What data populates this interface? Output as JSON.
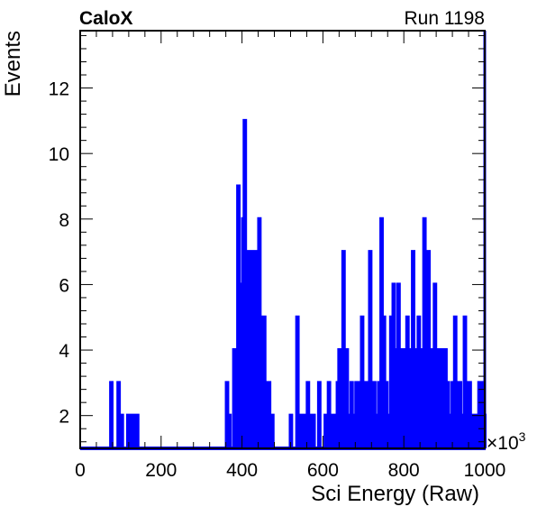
{
  "header": {
    "left_label": "CaloX",
    "right_label": "Run 1198"
  },
  "chart_data": {
    "type": "histogram",
    "title": "",
    "xlabel": "Sci Energy (Raw)",
    "ylabel": "Events",
    "x_multiplier_label": "×10",
    "x_multiplier_exp": "3",
    "xlim": [
      0,
      1000
    ],
    "ylim": [
      1,
      13.75
    ],
    "x_ticks": [
      "0",
      "200",
      "400",
      "600",
      "800",
      "1000"
    ],
    "y_ticks": [
      "2",
      "4",
      "6",
      "8",
      "10",
      "12"
    ],
    "line_color": "#0000ff",
    "bin_width": 2,
    "nonzero_bins": [
      [
        76,
        3
      ],
      [
        94,
        3
      ],
      [
        102,
        2
      ],
      [
        118,
        2
      ],
      [
        124,
        2
      ],
      [
        132,
        2
      ],
      [
        140,
        2
      ],
      [
        362,
        3
      ],
      [
        368,
        2
      ],
      [
        380,
        4
      ],
      [
        384,
        3
      ],
      [
        390,
        9
      ],
      [
        394,
        6
      ],
      [
        398,
        4
      ],
      [
        402,
        8
      ],
      [
        406,
        11
      ],
      [
        410,
        7
      ],
      [
        414,
        5
      ],
      [
        418,
        7
      ],
      [
        422,
        5
      ],
      [
        426,
        7
      ],
      [
        430,
        4
      ],
      [
        434,
        7
      ],
      [
        438,
        4
      ],
      [
        442,
        8
      ],
      [
        446,
        5
      ],
      [
        450,
        4
      ],
      [
        454,
        5
      ],
      [
        458,
        3
      ],
      [
        462,
        2
      ],
      [
        466,
        3
      ],
      [
        470,
        2
      ],
      [
        474,
        2
      ],
      [
        520,
        2
      ],
      [
        536,
        5
      ],
      [
        546,
        2
      ],
      [
        554,
        2
      ],
      [
        562,
        3
      ],
      [
        568,
        2
      ],
      [
        576,
        2
      ],
      [
        590,
        3
      ],
      [
        606,
        2
      ],
      [
        614,
        3
      ],
      [
        620,
        2
      ],
      [
        626,
        2
      ],
      [
        636,
        3
      ],
      [
        640,
        4
      ],
      [
        646,
        2
      ],
      [
        650,
        7
      ],
      [
        654,
        3
      ],
      [
        658,
        4
      ],
      [
        664,
        2
      ],
      [
        670,
        3
      ],
      [
        676,
        2
      ],
      [
        682,
        3
      ],
      [
        690,
        3
      ],
      [
        696,
        5
      ],
      [
        700,
        2
      ],
      [
        706,
        3
      ],
      [
        712,
        2
      ],
      [
        716,
        7
      ],
      [
        720,
        3
      ],
      [
        726,
        3
      ],
      [
        732,
        2
      ],
      [
        738,
        3
      ],
      [
        744,
        8
      ],
      [
        750,
        5
      ],
      [
        756,
        3
      ],
      [
        762,
        2
      ],
      [
        768,
        5
      ],
      [
        774,
        6
      ],
      [
        780,
        4
      ],
      [
        786,
        6
      ],
      [
        792,
        3
      ],
      [
        796,
        4
      ],
      [
        802,
        4
      ],
      [
        808,
        5
      ],
      [
        814,
        4
      ],
      [
        818,
        3
      ],
      [
        822,
        7
      ],
      [
        828,
        2
      ],
      [
        832,
        4
      ],
      [
        836,
        5
      ],
      [
        840,
        3
      ],
      [
        846,
        4
      ],
      [
        850,
        8
      ],
      [
        854,
        3
      ],
      [
        860,
        7
      ],
      [
        864,
        4
      ],
      [
        868,
        3
      ],
      [
        872,
        4
      ],
      [
        876,
        6
      ],
      [
        880,
        4
      ],
      [
        884,
        3
      ],
      [
        888,
        4
      ],
      [
        892,
        2
      ],
      [
        896,
        4
      ],
      [
        902,
        4
      ],
      [
        908,
        3
      ],
      [
        914,
        2
      ],
      [
        920,
        3
      ],
      [
        926,
        5
      ],
      [
        932,
        3
      ],
      [
        938,
        3
      ],
      [
        944,
        2
      ],
      [
        950,
        5
      ],
      [
        956,
        3
      ],
      [
        962,
        3
      ],
      [
        968,
        2
      ],
      [
        974,
        2
      ],
      [
        980,
        2
      ],
      [
        986,
        3
      ],
      [
        992,
        3
      ],
      [
        998,
        2
      ]
    ]
  }
}
